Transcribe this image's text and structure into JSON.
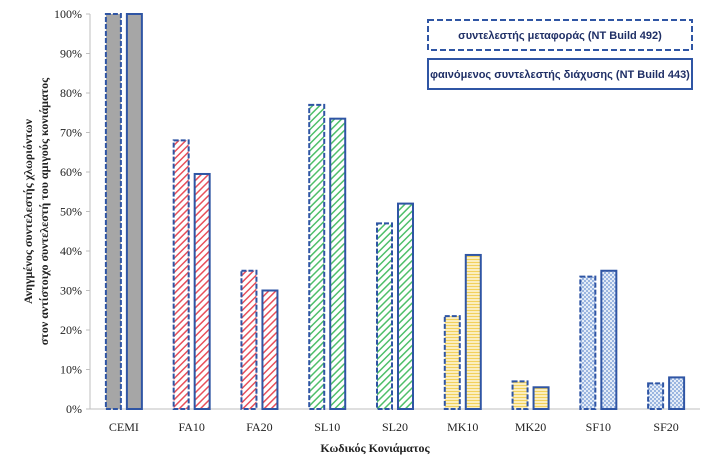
{
  "chart_data": {
    "type": "bar",
    "title": "",
    "xlabel": "Κωδικός Κονιάματος",
    "ylabel_lines": [
      "Ανηγμένος συντελεστής χλωριόντων",
      "στον αντίστοιχο συντελεστή του αμιγούς κονιάματος"
    ],
    "categories": [
      "CEMI",
      "FA10",
      "FA20",
      "SL10",
      "SL20",
      "MK10",
      "MK20",
      "SF10",
      "SF20"
    ],
    "ylim": [
      0,
      100
    ],
    "y_unit": "%",
    "y_ticks": [
      "0%",
      "10%",
      "20%",
      "30%",
      "40%",
      "50%",
      "60%",
      "70%",
      "80%",
      "90%",
      "100%"
    ],
    "grid": false,
    "legend_position": "top-right",
    "series": [
      {
        "name": "συντελεστής μεταφοράς (NT Build 492)",
        "border_style": "dashed",
        "values": [
          100,
          68,
          35,
          77,
          47,
          23.5,
          7,
          33.5,
          6.5
        ]
      },
      {
        "name": "φαινόμενος συντελεστής διάχυσης (NT Build 443)",
        "border_style": "solid",
        "values": [
          100,
          59.5,
          30,
          73.5,
          52,
          39,
          5.5,
          35,
          8
        ]
      }
    ],
    "category_colors": {
      "CEMI": "#a6a6a6",
      "FA10": "#e8505b",
      "FA20": "#e8505b",
      "SL10": "#4fbf6a",
      "SL20": "#4fbf6a",
      "MK10": "#f2d15c",
      "MK20": "#f2d15c",
      "SF10": "#9bb6e0",
      "SF20": "#9bb6e0"
    },
    "border_color": "#2f55a4"
  }
}
